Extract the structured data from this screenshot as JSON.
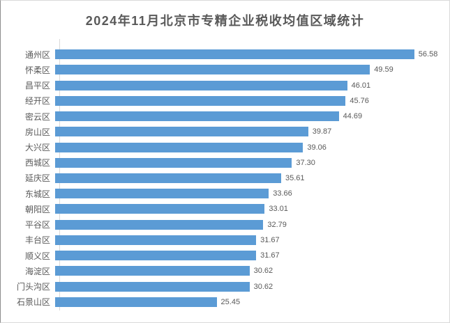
{
  "chart_data": {
    "type": "bar",
    "orientation": "horizontal",
    "title": "2024年11月北京市专精企业税收均值区域统计",
    "categories": [
      "通州区",
      "怀柔区",
      "昌平区",
      "经开区",
      "密云区",
      "房山区",
      "大兴区",
      "西城区",
      "延庆区",
      "东城区",
      "朝阳区",
      "平谷区",
      "丰台区",
      "顺义区",
      "海淀区",
      "门头沟区",
      "石景山区"
    ],
    "values": [
      56.58,
      49.59,
      46.01,
      45.76,
      44.69,
      39.87,
      39.06,
      37.3,
      35.61,
      33.66,
      33.01,
      32.79,
      31.67,
      31.67,
      30.62,
      30.62,
      25.45
    ],
    "value_labels": [
      "56.58",
      "49.59",
      "46.01",
      "45.76",
      "44.69",
      "39.87",
      "39.06",
      "37.30",
      "35.61",
      "33.66",
      "33.01",
      "32.79",
      "31.67",
      "31.67",
      "30.62",
      "30.62",
      "25.45"
    ],
    "xlabel": "",
    "ylabel": "",
    "xlim": [
      0,
      61
    ],
    "grid": false,
    "legend": false,
    "bar_color": "#5B9BD5"
  },
  "colors": {
    "bar": "#5B9BD5",
    "title_text": "#595959",
    "label_text": "#595959",
    "axis_line": "#D9D9D9",
    "border": "#D9D9D9",
    "background": "#FFFFFF"
  }
}
